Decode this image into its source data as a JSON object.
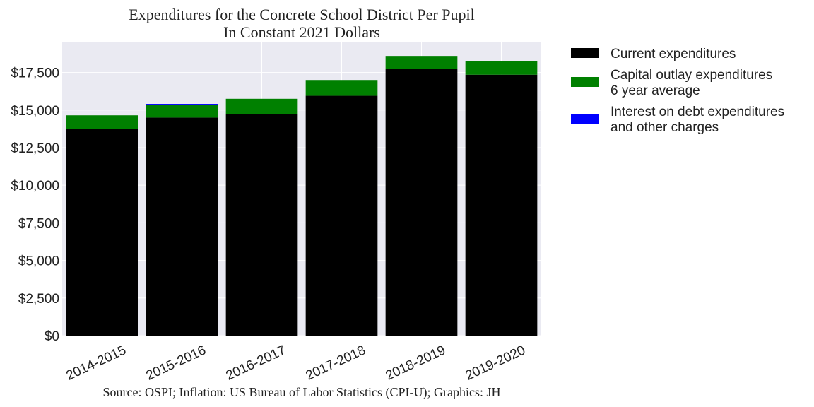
{
  "chart_data": {
    "type": "bar",
    "stacked": true,
    "title_lines": [
      "Expenditures for the Concrete School District Per Pupil",
      "In Constant 2021 Dollars"
    ],
    "categories": [
      "2014-2015",
      "2015-2016",
      "2016-2017",
      "2017-2018",
      "2018-2019",
      "2019-2020"
    ],
    "series": [
      {
        "name_lines": [
          "Current expenditures"
        ],
        "color": "#000000",
        "values": [
          13750,
          14500,
          14750,
          15950,
          17750,
          17350
        ]
      },
      {
        "name_lines": [
          "Capital outlay expenditures",
          "6 year average"
        ],
        "color": "#008000",
        "values": [
          900,
          850,
          1000,
          1050,
          850,
          900
        ]
      },
      {
        "name_lines": [
          "Interest on debt expenditures",
          "and other charges"
        ],
        "color": "#0000ff",
        "values": [
          0,
          60,
          0,
          0,
          0,
          0
        ]
      }
    ],
    "yticks": [
      0,
      2500,
      5000,
      7500,
      10000,
      12500,
      15000,
      17500
    ],
    "ytick_labels": [
      "$0",
      "$2,500",
      "$5,000",
      "$7,500",
      "$10,000",
      "$12,500",
      "$15,000",
      "$17,500"
    ],
    "ylim": [
      0,
      19500
    ],
    "grid": true,
    "legend_position": "outside-right-top",
    "source_text": "Source: OSPI; Inflation: US Bureau of Labor Statistics (CPI-U); Graphics: JH",
    "plot_background": "#eaeaf2"
  }
}
